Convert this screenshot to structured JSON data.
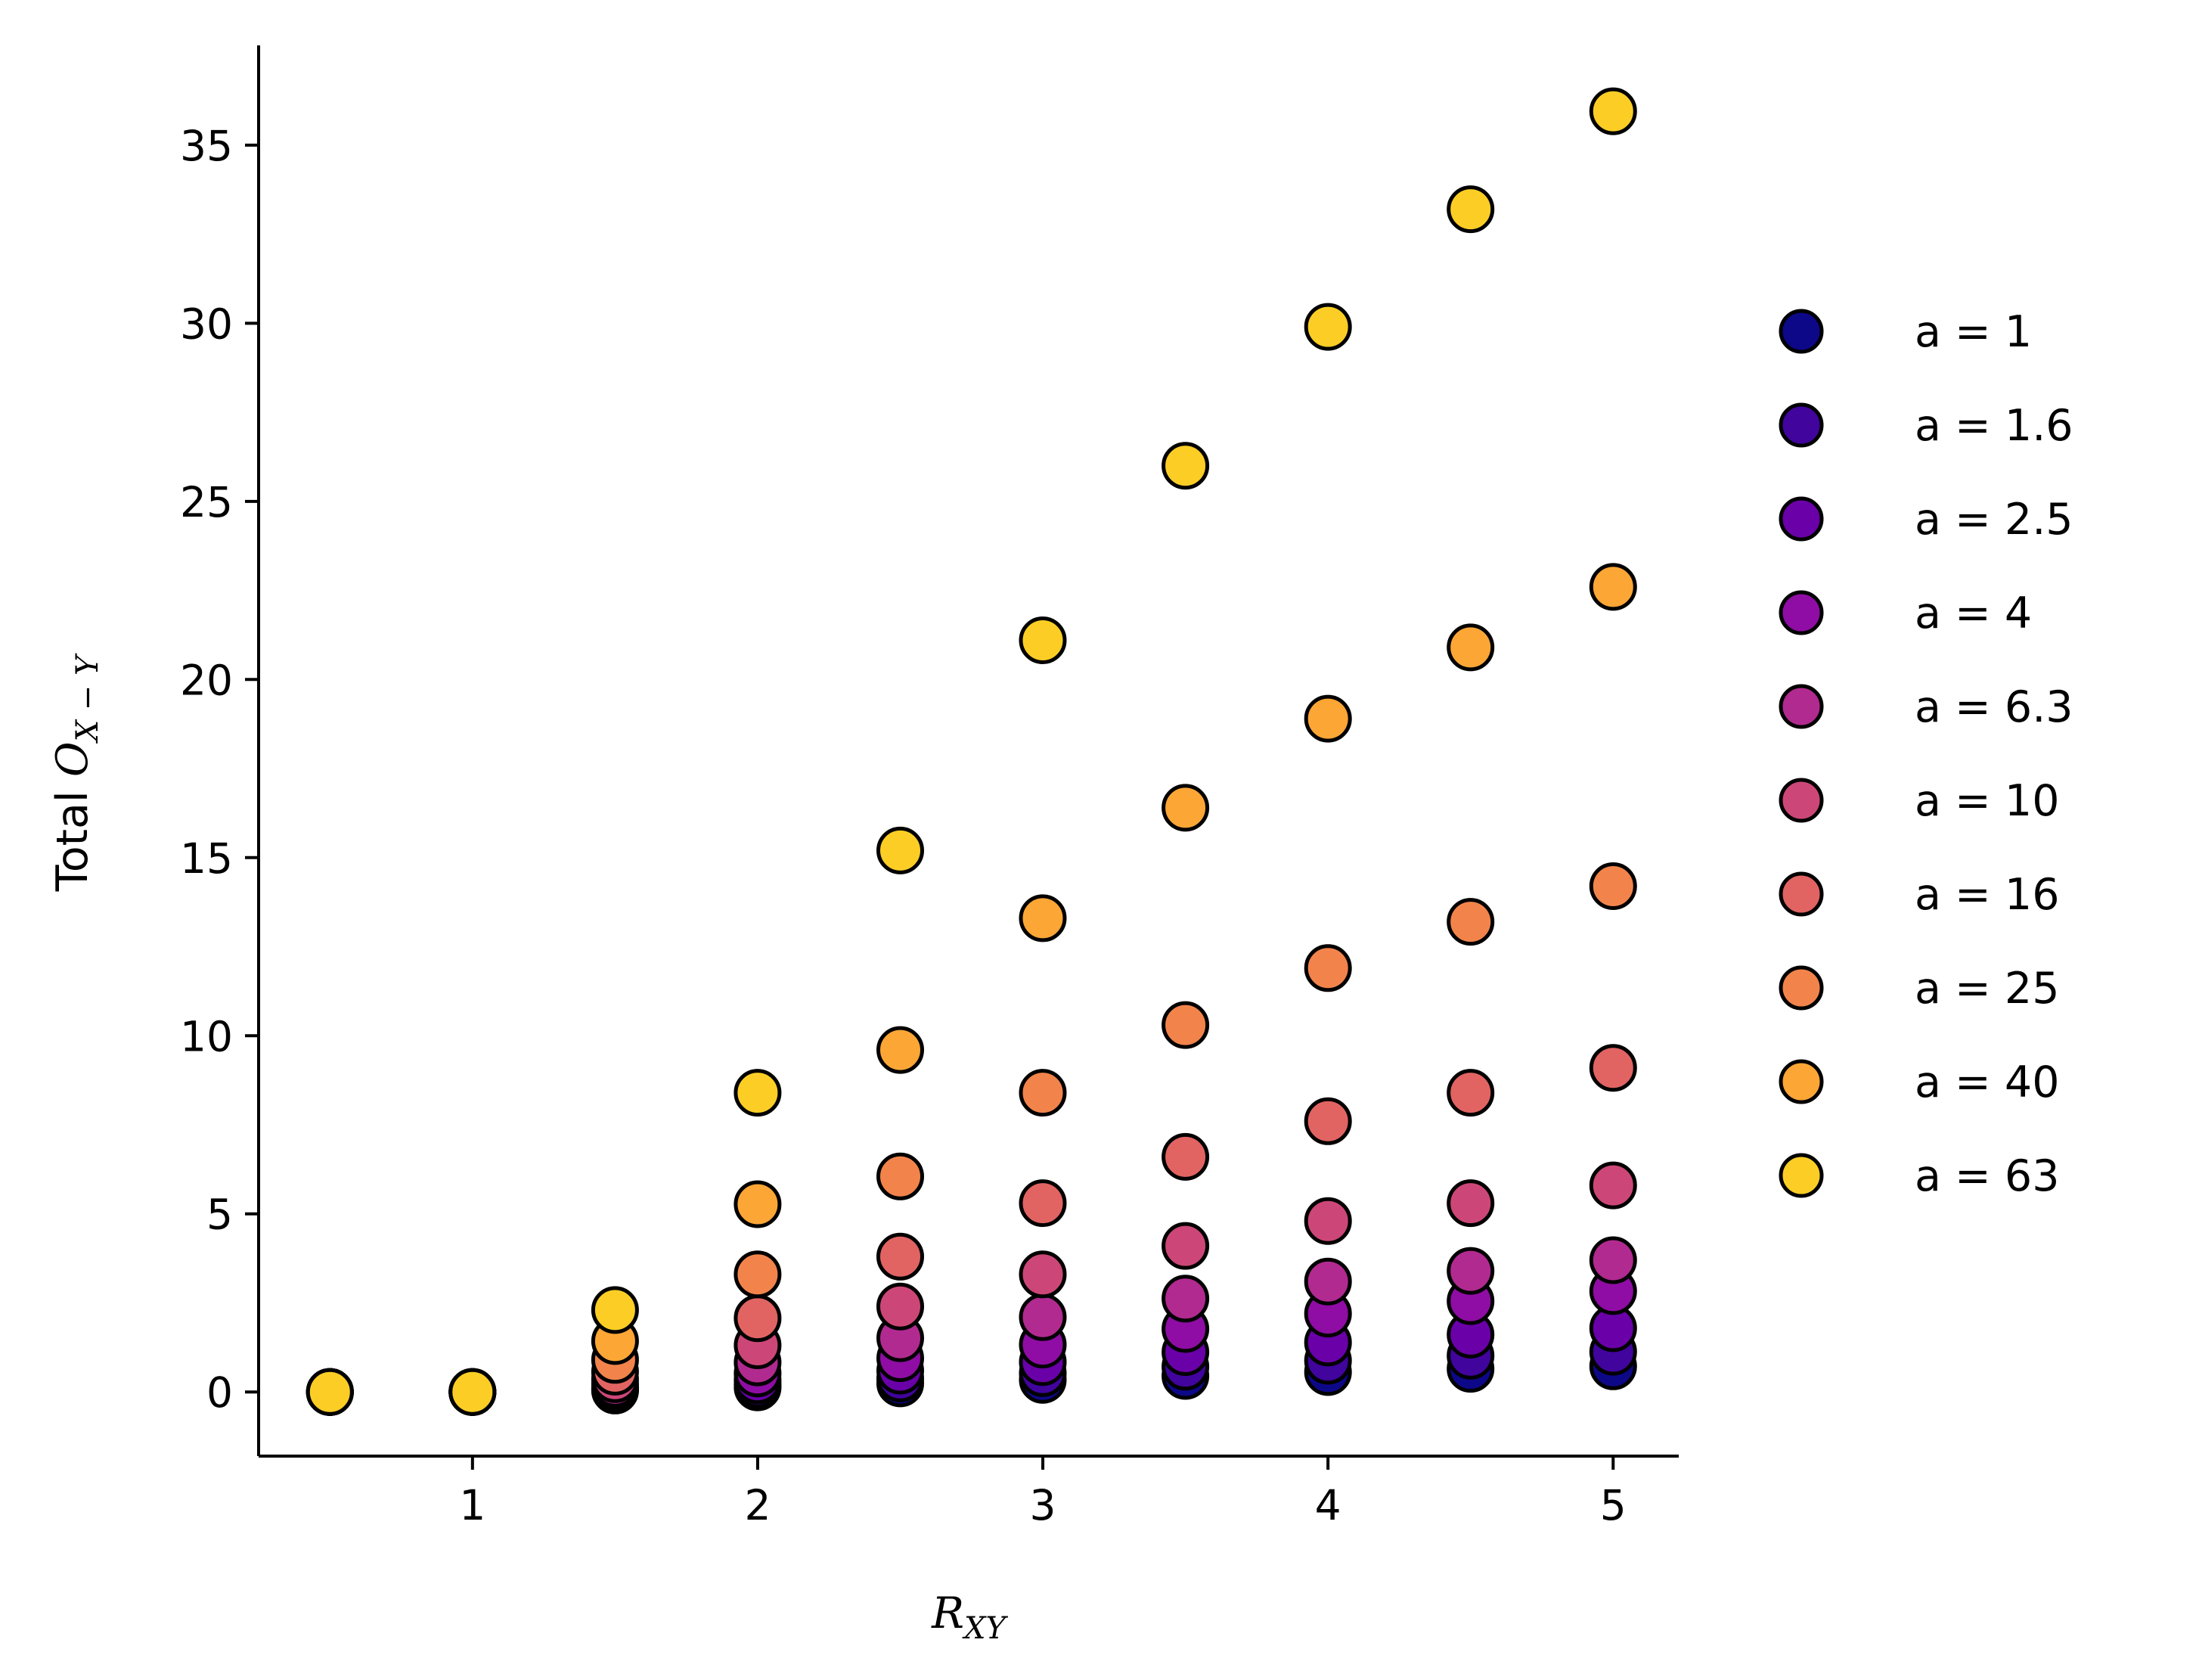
{
  "chart_data": {
    "type": "scatter",
    "title": "",
    "xlabel": {
      "base": "R",
      "sub": "XY"
    },
    "ylabel": {
      "prefix": "Total ",
      "base": "O",
      "sub": "X − Y"
    },
    "xlim": [
      0.25,
      5.23
    ],
    "ylim": [
      -1.8,
      37.8
    ],
    "x_ticks": [
      1,
      2,
      3,
      4,
      5
    ],
    "y_ticks": [
      0,
      5,
      10,
      15,
      20,
      25,
      30,
      35
    ],
    "grid": false,
    "legend_position": "right",
    "marker_edge_color": "#000000",
    "x": [
      0.5,
      1.0,
      1.5,
      2.0,
      2.5,
      3.0,
      3.5,
      4.0,
      4.5,
      5.0
    ],
    "series": [
      {
        "name": "a = 1",
        "legend_label": "a = 1",
        "color": "#0d0887",
        "values": [
          0,
          0,
          0.04,
          0.13,
          0.24,
          0.34,
          0.45,
          0.56,
          0.65,
          0.72
        ]
      },
      {
        "name": "a = 1.6",
        "legend_label": "a = 1.6",
        "color": "#41049d",
        "values": [
          0,
          0,
          0.06,
          0.21,
          0.38,
          0.53,
          0.71,
          0.88,
          1.02,
          1.13
        ]
      },
      {
        "name": "a = 2.5",
        "legend_label": "a = 2.5",
        "color": "#6a00a8",
        "values": [
          0,
          0,
          0.09,
          0.33,
          0.6,
          0.84,
          1.12,
          1.39,
          1.61,
          1.79
        ]
      },
      {
        "name": "a = 4",
        "legend_label": "a = 4",
        "color": "#8f0da4",
        "values": [
          0,
          0,
          0.14,
          0.52,
          0.95,
          1.33,
          1.77,
          2.2,
          2.55,
          2.83
        ]
      },
      {
        "name": "a = 6.3",
        "legend_label": "a = 6.3",
        "color": "#b12a90",
        "values": [
          0,
          0,
          0.23,
          0.83,
          1.51,
          2.1,
          2.62,
          3.1,
          3.4,
          3.7
        ]
      },
      {
        "name": "a = 10",
        "legend_label": "a = 10",
        "color": "#cc4778",
        "values": [
          0,
          0,
          0.36,
          1.31,
          2.4,
          3.3,
          4.1,
          4.8,
          5.3,
          5.8
        ]
      },
      {
        "name": "a = 16",
        "legend_label": "a = 16",
        "color": "#e16462",
        "values": [
          0,
          0,
          0.57,
          2.07,
          3.8,
          5.3,
          6.6,
          7.6,
          8.4,
          9.1
        ]
      },
      {
        "name": "a = 25",
        "legend_label": "a = 25",
        "color": "#f2844b",
        "values": [
          0,
          0,
          0.9,
          3.3,
          6.05,
          8.4,
          10.3,
          11.9,
          13.2,
          14.2
        ]
      },
      {
        "name": "a = 40",
        "legend_label": "a = 40",
        "color": "#fca636",
        "values": [
          0,
          0,
          1.43,
          5.27,
          9.6,
          13.3,
          16.4,
          18.9,
          20.9,
          22.6
        ]
      },
      {
        "name": "a = 63",
        "legend_label": "a = 63",
        "color": "#fcce25",
        "values": [
          0,
          0,
          2.3,
          8.4,
          15.2,
          21.1,
          26.0,
          29.9,
          33.2,
          35.95
        ]
      }
    ]
  }
}
